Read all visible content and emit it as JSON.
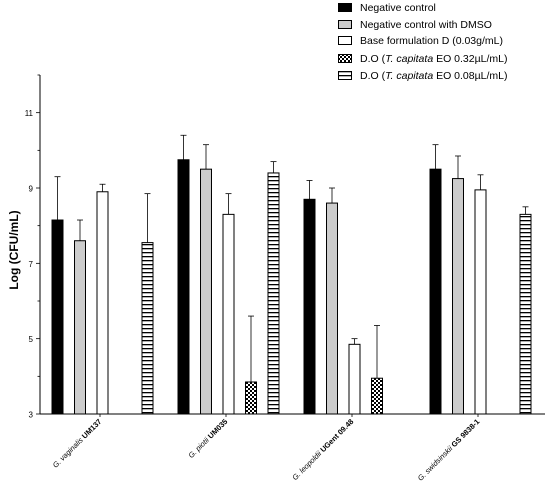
{
  "chart_data": {
    "type": "bar",
    "title": "",
    "xlabel": "",
    "ylabel": "Log (CFU/mL)",
    "ylim": [
      3,
      12
    ],
    "yticks": [
      "3",
      "5",
      "7",
      "9",
      "11"
    ],
    "categories": [
      {
        "species": "G. vaginalis",
        "strain": "UM137"
      },
      {
        "species": "G. piotii",
        "strain": "UM035"
      },
      {
        "species": "G. leopoldii",
        "strain": "UGent 09.48"
      },
      {
        "species": "G. swidsinskii",
        "strain": "GS 9838-1"
      }
    ],
    "series": [
      {
        "name": "Negative control",
        "fill": "#000000",
        "pattern": "solid-black",
        "values": [
          8.15,
          9.75,
          8.7,
          9.5
        ],
        "errors": [
          1.15,
          0.65,
          0.5,
          0.65
        ]
      },
      {
        "name": "Negative control with DMSO",
        "fill": "#cccccc",
        "pattern": "solid-gray",
        "values": [
          7.6,
          9.5,
          8.6,
          9.25
        ],
        "errors": [
          0.55,
          0.65,
          0.4,
          0.6
        ]
      },
      {
        "name": "Base formulation D (0.03g/mL)",
        "fill": "#ffffff",
        "pattern": "solid-white",
        "values": [
          8.9,
          8.3,
          4.85,
          8.95
        ],
        "errors": [
          0.2,
          0.55,
          0.15,
          0.4
        ]
      },
      {
        "name_parts": [
          "D.O (",
          "T. capitata",
          " EO 0.32µL/mL)"
        ],
        "fill": "#000000",
        "pattern": "checker",
        "values": [
          null,
          3.85,
          3.95,
          null
        ],
        "errors": [
          null,
          1.75,
          1.4,
          null
        ]
      },
      {
        "name_parts": [
          "D.O (",
          "T. capitata",
          " EO 0.08µL/mL)"
        ],
        "fill": "#000000",
        "pattern": "hlines",
        "values": [
          7.55,
          9.4,
          null,
          8.3
        ],
        "errors": [
          1.3,
          0.3,
          null,
          0.2
        ]
      }
    ],
    "legend_position": "top-right",
    "grid": false
  }
}
